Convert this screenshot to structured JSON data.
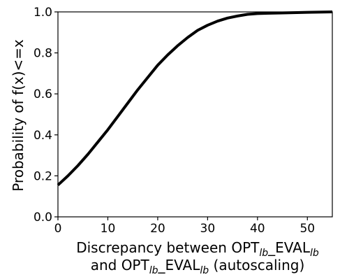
{
  "chart_data": {
    "type": "line",
    "xlabel": {
      "line1": {
        "a": "Discrepancy between OPT",
        "b": "lb",
        "c": "_EVAL",
        "d": "lb"
      },
      "line2": {
        "a": "and OPT",
        "b": "lb",
        "c": "_EVAL",
        "d": "lb",
        "e": " (autoscaling)"
      }
    },
    "ylabel": "Probability of f(x)<=x",
    "xlim": [
      0,
      55
    ],
    "ylim": [
      0,
      1
    ],
    "xticks": [
      0,
      10,
      20,
      30,
      40,
      50
    ],
    "yticks": [
      "0.0",
      "0.2",
      "0.4",
      "0.6",
      "0.8",
      "1.0"
    ],
    "grid": false,
    "series": [
      {
        "color": "#000000",
        "x": [
          0,
          2,
          4,
          6,
          8,
          10,
          12,
          14,
          16,
          18,
          20,
          22,
          24,
          26,
          28,
          30,
          32,
          34,
          36,
          38,
          40,
          45,
          50,
          55
        ],
        "y": [
          0.155,
          0.2,
          0.25,
          0.305,
          0.365,
          0.425,
          0.49,
          0.555,
          0.62,
          0.68,
          0.74,
          0.79,
          0.835,
          0.875,
          0.91,
          0.935,
          0.955,
          0.97,
          0.98,
          0.988,
          0.992,
          0.995,
          0.998,
          1.0
        ]
      }
    ]
  }
}
